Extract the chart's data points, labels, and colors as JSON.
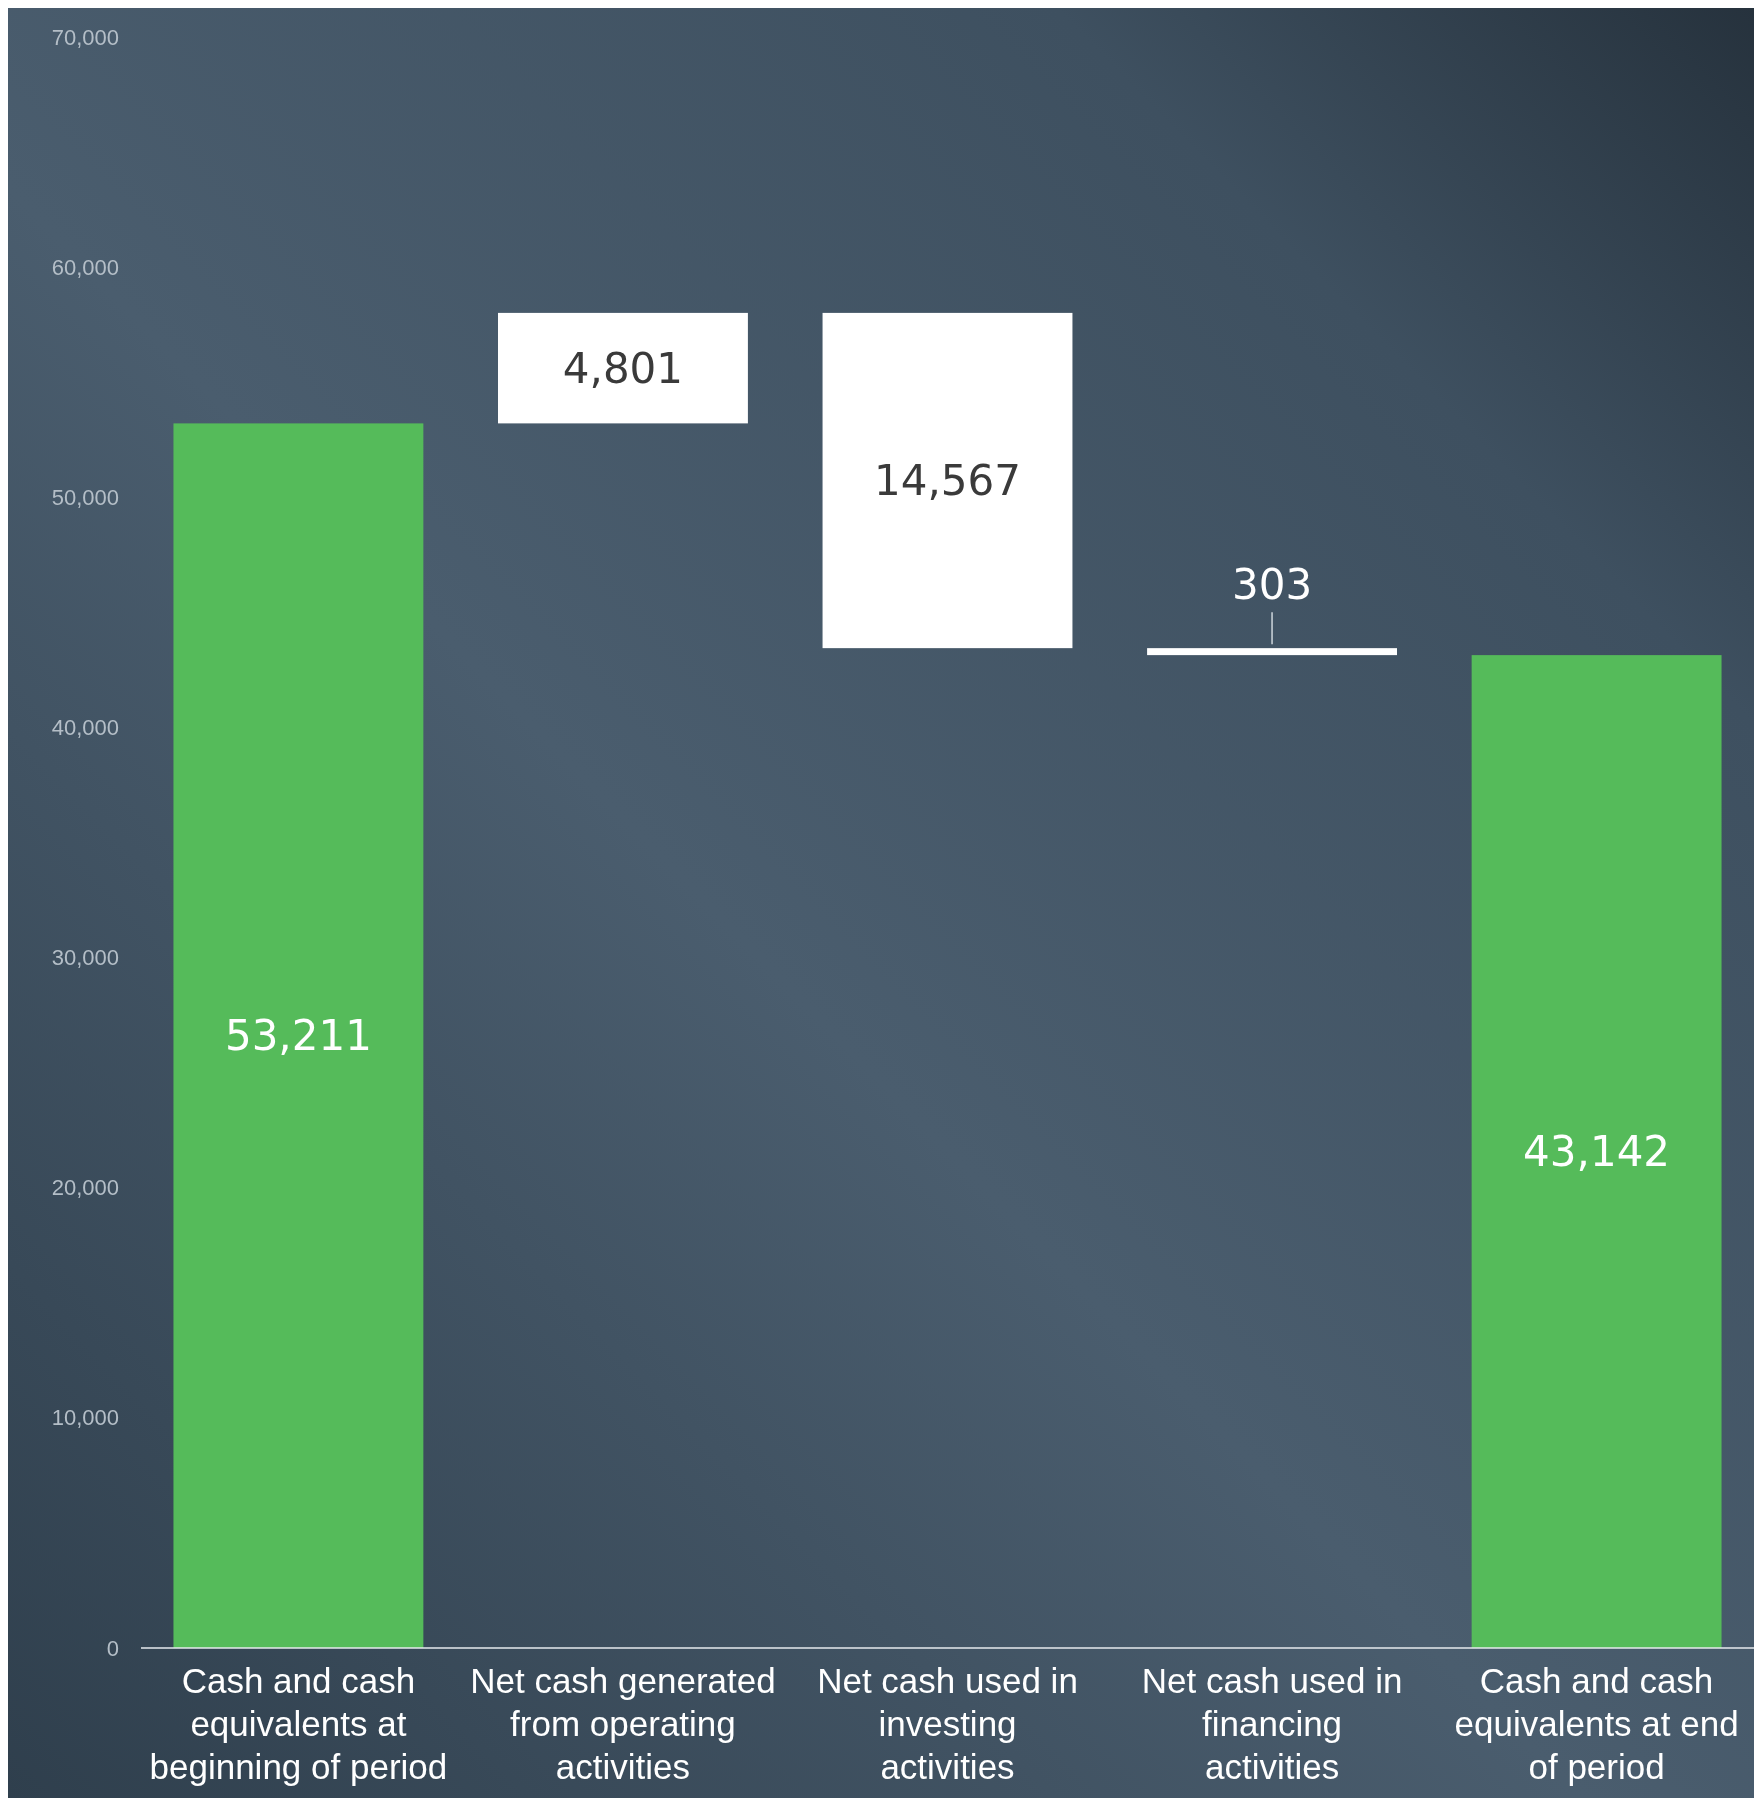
{
  "chart_data": {
    "type": "bar",
    "categories": [
      "Cash and cash equivalents at beginning of period",
      "Net cash generated from operating activities",
      "Net cash used in investing activities",
      "Net cash used in financing activities",
      "Cash and cash equivalents at end of period"
    ],
    "values": [
      53211,
      4801,
      14567,
      303,
      43142
    ],
    "base": [
      0,
      53211,
      43445,
      43142,
      0
    ],
    "colors": [
      "#55bb5a",
      "#ffffff",
      "#ffffff",
      "#ffffff",
      "#55bb5a"
    ],
    "value_labels": [
      "53,211",
      "4,801",
      "14,567",
      "303",
      "43,142"
    ],
    "ylim": [
      0,
      70000
    ],
    "yticks": [
      {
        "value": 0,
        "label": "0"
      },
      {
        "value": 10000,
        "label": "10,000"
      },
      {
        "value": 20000,
        "label": "20,000"
      },
      {
        "value": 30000,
        "label": "30,000"
      },
      {
        "value": 40000,
        "label": "40,000"
      },
      {
        "value": 50000,
        "label": "50,000"
      },
      {
        "value": 60000,
        "label": "60,000"
      },
      {
        "value": 70000,
        "label": "70,000"
      }
    ],
    "grid": false
  }
}
